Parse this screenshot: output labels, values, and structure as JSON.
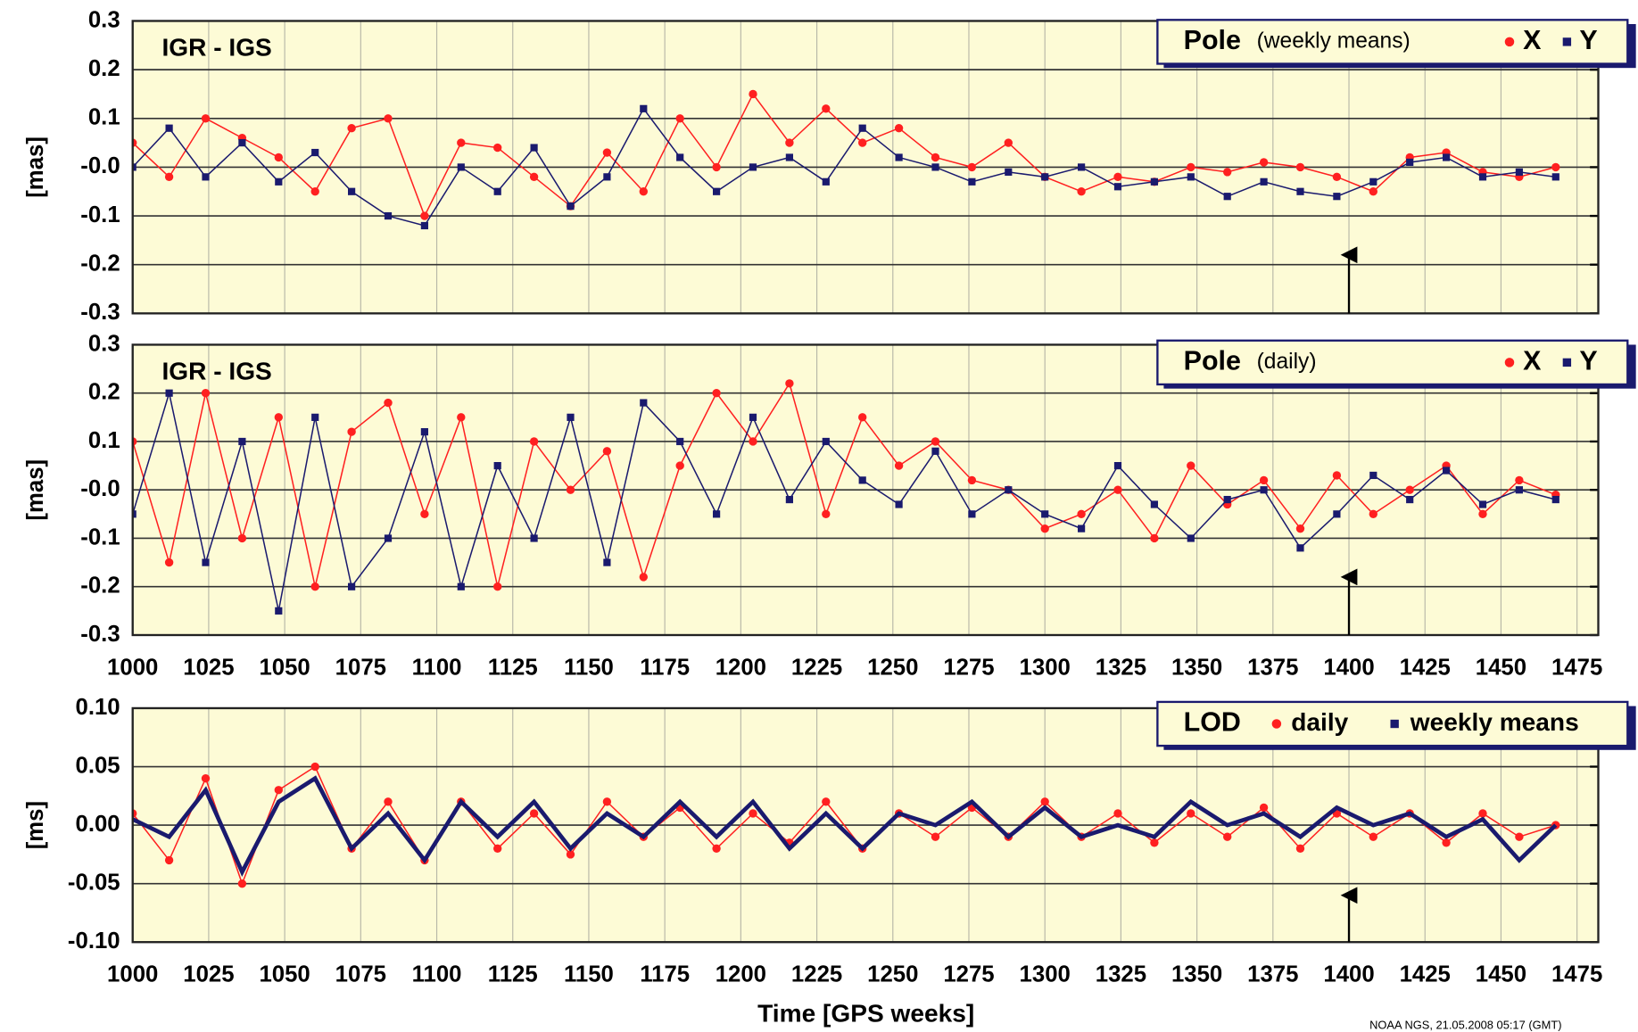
{
  "chart_data": [
    {
      "type": "line",
      "annotation": "IGR - IGS",
      "ylabel": "[mas]",
      "legend_title": "Pole",
      "legend_subtitle": "(weekly means)",
      "x": [
        1000,
        1012,
        1024,
        1036,
        1048,
        1060,
        1072,
        1084,
        1096,
        1108,
        1120,
        1132,
        1144,
        1156,
        1168,
        1180,
        1192,
        1204,
        1216,
        1228,
        1240,
        1252,
        1264,
        1276,
        1288,
        1300,
        1312,
        1324,
        1336,
        1348,
        1360,
        1372,
        1384,
        1396,
        1408,
        1420,
        1432,
        1444,
        1456,
        1468
      ],
      "series": [
        {
          "name": "X",
          "color": "#ff2020",
          "marker": "circle",
          "values": [
            0.05,
            -0.02,
            0.1,
            0.06,
            0.02,
            -0.05,
            0.08,
            0.1,
            -0.1,
            0.05,
            0.04,
            -0.02,
            -0.08,
            0.03,
            -0.05,
            0.1,
            0.0,
            0.15,
            0.05,
            0.12,
            0.05,
            0.08,
            0.02,
            0.0,
            0.05,
            -0.02,
            -0.05,
            -0.02,
            -0.03,
            0.0,
            -0.01,
            0.01,
            0.0,
            -0.02,
            -0.05,
            0.02,
            0.03,
            -0.01,
            -0.02,
            0.0
          ]
        },
        {
          "name": "Y",
          "color": "#1a1a6e",
          "marker": "square",
          "values": [
            0.0,
            0.08,
            -0.02,
            0.05,
            -0.03,
            0.03,
            -0.05,
            -0.1,
            -0.12,
            0.0,
            -0.05,
            0.04,
            -0.08,
            -0.02,
            0.12,
            0.02,
            -0.05,
            0.0,
            0.02,
            -0.03,
            0.08,
            0.02,
            0.0,
            -0.03,
            -0.01,
            -0.02,
            0.0,
            -0.04,
            -0.03,
            -0.02,
            -0.06,
            -0.03,
            -0.05,
            -0.06,
            -0.03,
            0.01,
            0.02,
            -0.02,
            -0.01,
            -0.02
          ]
        }
      ],
      "xlim": [
        1000,
        1482
      ],
      "xticks": [
        1000,
        1025,
        1050,
        1075,
        1100,
        1125,
        1150,
        1175,
        1200,
        1225,
        1250,
        1275,
        1300,
        1325,
        1350,
        1375,
        1400,
        1425,
        1450,
        1475
      ],
      "show_xtick_labels": false,
      "ylim": [
        -0.3,
        0.3
      ],
      "yticks": [
        0.3,
        0.2,
        0.1,
        {
          "value": 0,
          "label": "-0.0"
        },
        -0.1,
        -0.2,
        -0.3
      ],
      "arrow_x": 1400
    },
    {
      "type": "line",
      "annotation": "IGR - IGS",
      "ylabel": "[mas]",
      "legend_title": "Pole",
      "legend_subtitle": "(daily)",
      "x": [
        1000,
        1012,
        1024,
        1036,
        1048,
        1060,
        1072,
        1084,
        1096,
        1108,
        1120,
        1132,
        1144,
        1156,
        1168,
        1180,
        1192,
        1204,
        1216,
        1228,
        1240,
        1252,
        1264,
        1276,
        1288,
        1300,
        1312,
        1324,
        1336,
        1348,
        1360,
        1372,
        1384,
        1396,
        1408,
        1420,
        1432,
        1444,
        1456,
        1468
      ],
      "series": [
        {
          "name": "X",
          "color": "#ff2020",
          "marker": "circle",
          "values": [
            0.1,
            -0.15,
            0.2,
            -0.1,
            0.15,
            -0.2,
            0.12,
            0.18,
            -0.05,
            0.15,
            -0.2,
            0.1,
            0.0,
            0.08,
            -0.18,
            0.05,
            0.2,
            0.1,
            0.22,
            -0.05,
            0.15,
            0.05,
            0.1,
            0.02,
            0.0,
            -0.08,
            -0.05,
            0.0,
            -0.1,
            0.05,
            -0.03,
            0.02,
            -0.08,
            0.03,
            -0.05,
            0.0,
            0.05,
            -0.05,
            0.02,
            -0.01
          ]
        },
        {
          "name": "Y",
          "color": "#1a1a6e",
          "marker": "square",
          "values": [
            -0.05,
            0.2,
            -0.15,
            0.1,
            -0.25,
            0.15,
            -0.2,
            -0.1,
            0.12,
            -0.2,
            0.05,
            -0.1,
            0.15,
            -0.15,
            0.18,
            0.1,
            -0.05,
            0.15,
            -0.02,
            0.1,
            0.02,
            -0.03,
            0.08,
            -0.05,
            0.0,
            -0.05,
            -0.08,
            0.05,
            -0.03,
            -0.1,
            -0.02,
            0.0,
            -0.12,
            -0.05,
            0.03,
            -0.02,
            0.04,
            -0.03,
            0.0,
            -0.02
          ]
        }
      ],
      "xlim": [
        1000,
        1482
      ],
      "xticks": [
        1000,
        1025,
        1050,
        1075,
        1100,
        1125,
        1150,
        1175,
        1200,
        1225,
        1250,
        1275,
        1300,
        1325,
        1350,
        1375,
        1400,
        1425,
        1450,
        1475
      ],
      "show_xtick_labels": true,
      "ylim": [
        -0.3,
        0.3
      ],
      "yticks": [
        0.3,
        0.2,
        0.1,
        {
          "value": 0,
          "label": "-0.0"
        },
        -0.1,
        -0.2,
        -0.3
      ],
      "arrow_x": 1400
    },
    {
      "type": "line",
      "ylabel": "[ms]",
      "xlabel": "Time [GPS weeks]",
      "legend_title": "LOD",
      "x": [
        1000,
        1012,
        1024,
        1036,
        1048,
        1060,
        1072,
        1084,
        1096,
        1108,
        1120,
        1132,
        1144,
        1156,
        1168,
        1180,
        1192,
        1204,
        1216,
        1228,
        1240,
        1252,
        1264,
        1276,
        1288,
        1300,
        1312,
        1324,
        1336,
        1348,
        1360,
        1372,
        1384,
        1396,
        1408,
        1420,
        1432,
        1444,
        1456,
        1468
      ],
      "series": [
        {
          "name": "daily",
          "color": "#ff2020",
          "marker": "circle",
          "values": [
            0.01,
            -0.03,
            0.04,
            -0.05,
            0.03,
            0.05,
            -0.02,
            0.02,
            -0.03,
            0.02,
            -0.02,
            0.01,
            -0.025,
            0.02,
            -0.01,
            0.015,
            -0.02,
            0.01,
            -0.015,
            0.02,
            -0.02,
            0.01,
            -0.01,
            0.015,
            -0.01,
            0.02,
            -0.01,
            0.01,
            -0.015,
            0.01,
            -0.01,
            0.015,
            -0.02,
            0.01,
            -0.01,
            0.01,
            -0.015,
            0.01,
            -0.01,
            0.0
          ]
        },
        {
          "name": "weekly means",
          "color": "#1a1a6e",
          "marker": "none",
          "values": [
            0.005,
            -0.01,
            0.03,
            -0.04,
            0.02,
            0.04,
            -0.02,
            0.01,
            -0.03,
            0.02,
            -0.01,
            0.02,
            -0.02,
            0.01,
            -0.01,
            0.02,
            -0.01,
            0.02,
            -0.02,
            0.01,
            -0.02,
            0.01,
            0.0,
            0.02,
            -0.01,
            0.015,
            -0.01,
            0.0,
            -0.01,
            0.02,
            0.0,
            0.01,
            -0.01,
            0.015,
            0.0,
            0.01,
            -0.01,
            0.005,
            -0.03,
            0.0
          ]
        }
      ],
      "xlim": [
        1000,
        1482
      ],
      "xticks": [
        1000,
        1025,
        1050,
        1075,
        1100,
        1125,
        1150,
        1175,
        1200,
        1225,
        1250,
        1275,
        1300,
        1325,
        1350,
        1375,
        1400,
        1425,
        1450,
        1475
      ],
      "show_xtick_labels": true,
      "ylim": [
        -0.1,
        0.1
      ],
      "yticks": [
        {
          "value": 0.1,
          "label": "0.10"
        },
        0.05,
        {
          "value": 0,
          "label": "0.00"
        },
        -0.05,
        {
          "value": -0.1,
          "label": "-0.10"
        }
      ],
      "arrow_x": 1400
    }
  ],
  "footer": "NOAA NGS, 21.05.2008 05:17 (GMT)"
}
